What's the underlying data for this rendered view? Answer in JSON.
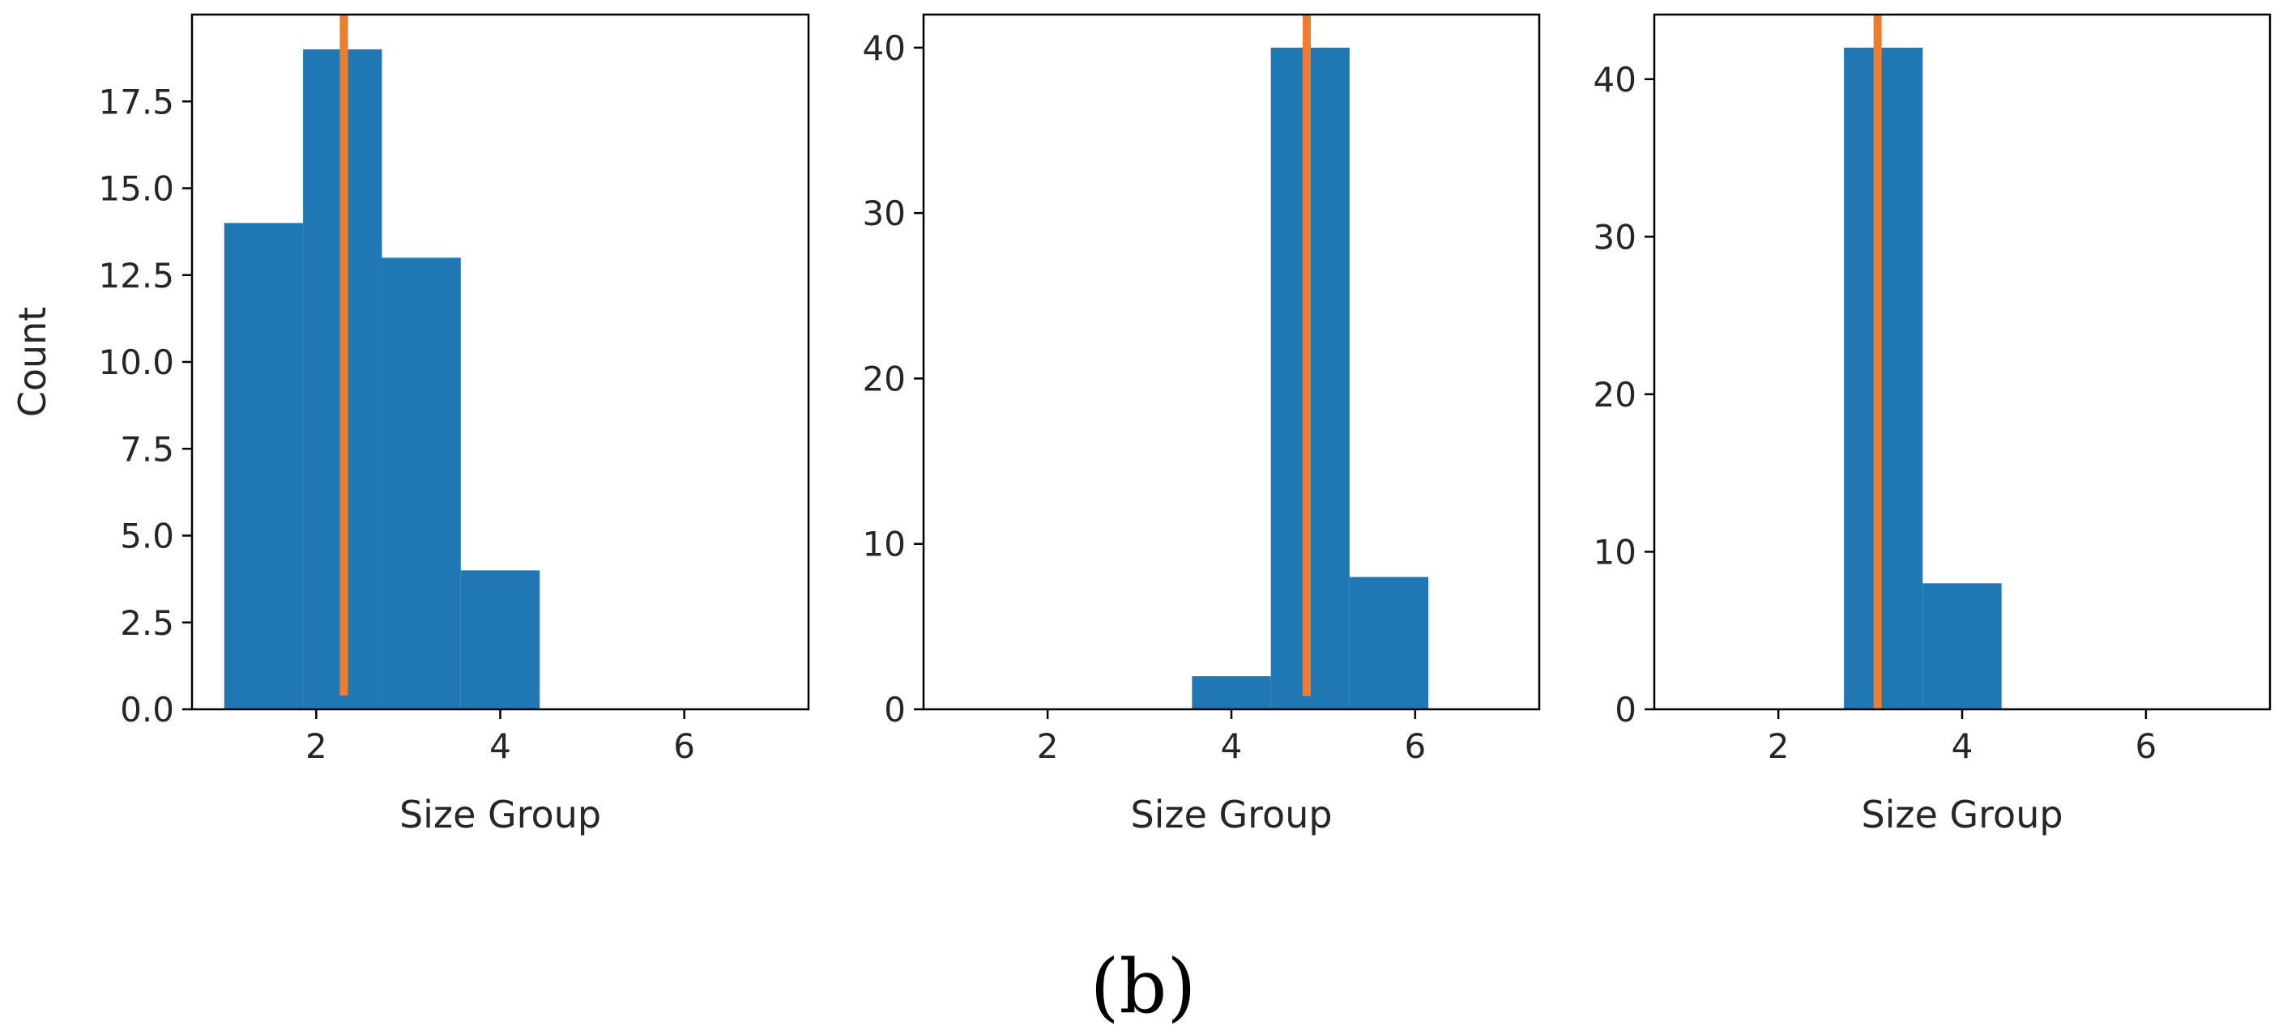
{
  "figure": {
    "caption": "(b)",
    "bar_color": "#1f77b4",
    "marker_color": "#ed7d31",
    "frame_color": "#000000"
  },
  "chart_data": [
    {
      "type": "bar",
      "title": "",
      "xlabel": "Size Group",
      "ylabel": "Count",
      "xlim": [
        0.65,
        7.35
      ],
      "ylim": [
        0,
        20.0
      ],
      "xticks": [
        2,
        4,
        6
      ],
      "xtick_labels": [
        "2",
        "4",
        "6"
      ],
      "yticks": [
        0,
        2.5,
        5,
        7.5,
        10,
        12.5,
        15,
        17.5
      ],
      "ytick_labels": [
        "0.0",
        "2.5",
        "5.0",
        "7.5",
        "10.0",
        "12.5",
        "15.0",
        "17.5"
      ],
      "bins": [
        {
          "x0": 1.0,
          "x1": 1.857,
          "count": 14
        },
        {
          "x0": 1.857,
          "x1": 2.714,
          "count": 19
        },
        {
          "x0": 2.714,
          "x1": 3.571,
          "count": 13
        },
        {
          "x0": 3.571,
          "x1": 4.429,
          "count": 4
        }
      ],
      "marker_x": 2.3,
      "marker_y_range": [
        0.4,
        20.0
      ]
    },
    {
      "type": "bar",
      "title": "",
      "xlabel": "Size Group",
      "ylabel": "",
      "xlim": [
        0.65,
        7.35
      ],
      "ylim": [
        0,
        42.0
      ],
      "xticks": [
        2,
        4,
        6
      ],
      "xtick_labels": [
        "2",
        "4",
        "6"
      ],
      "yticks": [
        0,
        10,
        20,
        30,
        40
      ],
      "ytick_labels": [
        "0",
        "10",
        "20",
        "30",
        "40"
      ],
      "bins": [
        {
          "x0": 3.571,
          "x1": 4.429,
          "count": 2
        },
        {
          "x0": 4.429,
          "x1": 5.286,
          "count": 40
        },
        {
          "x0": 5.286,
          "x1": 6.143,
          "count": 8
        }
      ],
      "marker_x": 4.82,
      "marker_y_range": [
        0.8,
        42.0
      ]
    },
    {
      "type": "bar",
      "title": "",
      "xlabel": "Size Group",
      "ylabel": "",
      "xlim": [
        0.65,
        7.35
      ],
      "ylim": [
        0,
        44.1
      ],
      "xticks": [
        2,
        4,
        6
      ],
      "xtick_labels": [
        "2",
        "4",
        "6"
      ],
      "yticks": [
        0,
        10,
        20,
        30,
        40
      ],
      "ytick_labels": [
        "0",
        "10",
        "20",
        "30",
        "40"
      ],
      "bins": [
        {
          "x0": 2.714,
          "x1": 3.571,
          "count": 42
        },
        {
          "x0": 3.571,
          "x1": 4.429,
          "count": 8
        }
      ],
      "marker_x": 3.08,
      "marker_y_range": [
        0.0,
        44.1
      ]
    }
  ]
}
